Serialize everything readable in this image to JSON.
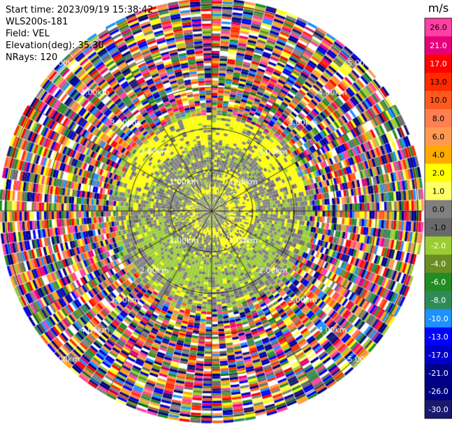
{
  "header": {
    "start_time": "Start time: 2023/09/19 15:38:42",
    "instrument": "WLS200s-181",
    "field": "Field: VEL",
    "elevation": "Elevation(deg): 35.30",
    "nrays": "NRays: 120"
  },
  "range_ring_labels": [
    "1.00km",
    "2.00km",
    "3.00km",
    "4.00km",
    "5.00km"
  ],
  "colorbar": {
    "unit": "m/s",
    "ticks": [
      "26.0",
      "21.0",
      "17.0",
      "13.0",
      "10.0",
      "8.0",
      "6.0",
      "4.0",
      "2.0",
      "1.0",
      "0.0",
      "-1.0",
      "-2.0",
      "-4.0",
      "-6.0",
      "-8.0",
      "-10.0",
      "-13.0",
      "-17.0",
      "-21.0",
      "-26.0",
      "-30.0"
    ],
    "colors": [
      "#ff3fa3",
      "#e8007a",
      "#ff0000",
      "#ff2a00",
      "#ff5a1e",
      "#ff7f50",
      "#ff9a50",
      "#ffaa00",
      "#ffff00",
      "#ffff66",
      "#808080",
      "#696969",
      "#9acd32",
      "#6b8e23",
      "#228b22",
      "#2e8b57",
      "#1e90ff",
      "#0000ff",
      "#0000cd",
      "#00008b",
      "#000080",
      "#191970"
    ]
  },
  "chart_data": {
    "type": "heatmap",
    "subtype": "polar-ppi",
    "field": "VEL",
    "unit": "m/s",
    "rays": 120,
    "range_rings_km": [
      1,
      2,
      3,
      4,
      5
    ],
    "color_scale_min": -30.0,
    "color_scale_max": 26.0,
    "inner_region": "near-zero velocities (grey) with yellow (+2) and yellow-green (-2) patches out to about 2.4 km",
    "outer_region": "noisy, fully mixed velocities beyond about 2.4 km"
  }
}
